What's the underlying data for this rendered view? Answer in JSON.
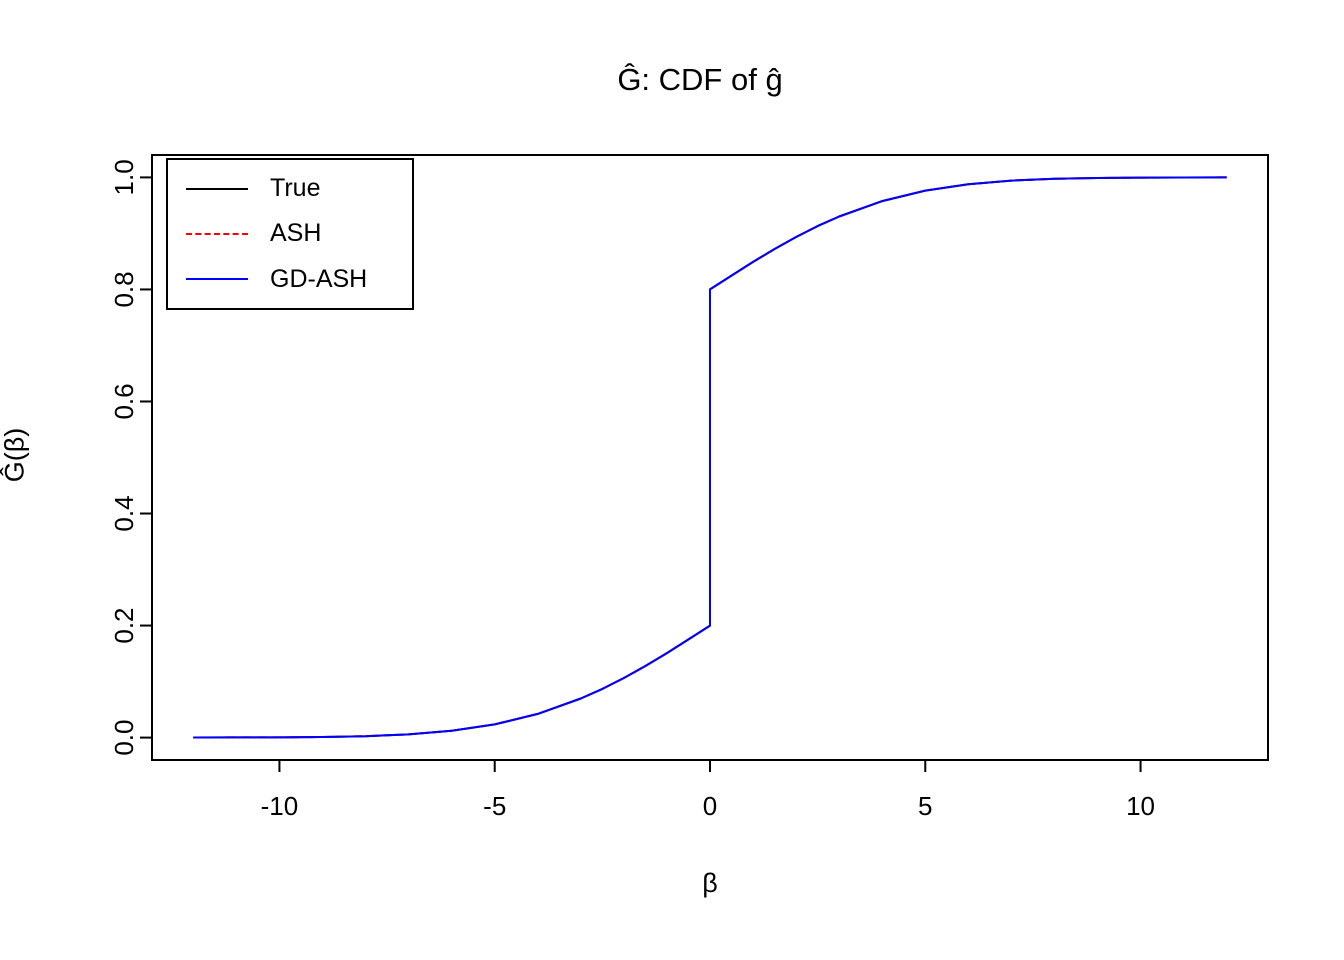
{
  "title": "Ĝ: CDF of ĝ",
  "x_axis": {
    "label": "β",
    "ticks": [
      -10,
      -5,
      0,
      5,
      10
    ]
  },
  "y_axis": {
    "label": "Ĝ(β)",
    "ticks": [
      "0.0",
      "0.2",
      "0.4",
      "0.6",
      "0.8",
      "1.0"
    ]
  },
  "legend": {
    "position": "top-left",
    "items": [
      {
        "label": "True",
        "color": "#000000",
        "dash": "solid"
      },
      {
        "label": "ASH",
        "color": "#FF0000",
        "dash": "dashed"
      },
      {
        "label": "GD-ASH",
        "color": "#0000FF",
        "dash": "solid"
      }
    ]
  },
  "chart_data": {
    "type": "line",
    "title": "Ĝ: CDF of ĝ",
    "xlabel": "β",
    "ylabel": "Ĝ(β)",
    "xlim": [
      -12.96,
      12.96
    ],
    "ylim": [
      -0.04,
      1.04
    ],
    "grid": false,
    "note": "All three CDF curves coincide: mixture of 0.6 point mass at 0 (jump 0.2 to 0.8) plus smooth symmetric component",
    "x": [
      -12,
      -11,
      -10,
      -9,
      -8,
      -7,
      -6,
      -5,
      -4,
      -3,
      -2.5,
      -2,
      -1.5,
      -1,
      -0.5,
      0,
      0,
      0.5,
      1,
      1.5,
      2,
      2.5,
      3,
      4,
      5,
      6,
      7,
      8,
      9,
      10,
      11,
      12
    ],
    "series": [
      {
        "name": "True",
        "color": "#000000",
        "dash": "solid",
        "values": [
          0.0001,
          0.0003,
          0.0004,
          0.001,
          0.0025,
          0.0057,
          0.0122,
          0.0236,
          0.0423,
          0.0697,
          0.0869,
          0.1064,
          0.1278,
          0.1509,
          0.1752,
          0.2,
          0.8,
          0.8248,
          0.8491,
          0.8722,
          0.8936,
          0.9131,
          0.9303,
          0.9577,
          0.9764,
          0.9878,
          0.9943,
          0.9975,
          0.999,
          0.9996,
          0.9999,
          1.0
        ]
      },
      {
        "name": "ASH",
        "color": "#FF0000",
        "dash": "dashed",
        "values": [
          0.0001,
          0.0003,
          0.0004,
          0.001,
          0.0025,
          0.0057,
          0.0122,
          0.0236,
          0.0423,
          0.0697,
          0.0869,
          0.1064,
          0.1278,
          0.1509,
          0.1752,
          0.2,
          0.8,
          0.8248,
          0.8491,
          0.8722,
          0.8936,
          0.9131,
          0.9303,
          0.9577,
          0.9764,
          0.9878,
          0.9943,
          0.9975,
          0.999,
          0.9996,
          0.9999,
          1.0
        ]
      },
      {
        "name": "GD-ASH",
        "color": "#0000FF",
        "dash": "solid",
        "values": [
          0.0001,
          0.0003,
          0.0004,
          0.001,
          0.0025,
          0.0057,
          0.0122,
          0.0236,
          0.0423,
          0.0697,
          0.0869,
          0.1064,
          0.1278,
          0.1509,
          0.1752,
          0.2,
          0.8,
          0.8248,
          0.8491,
          0.8722,
          0.8936,
          0.9131,
          0.9303,
          0.9577,
          0.9764,
          0.9878,
          0.9943,
          0.9975,
          0.999,
          0.9996,
          0.9999,
          1.0
        ]
      }
    ]
  }
}
